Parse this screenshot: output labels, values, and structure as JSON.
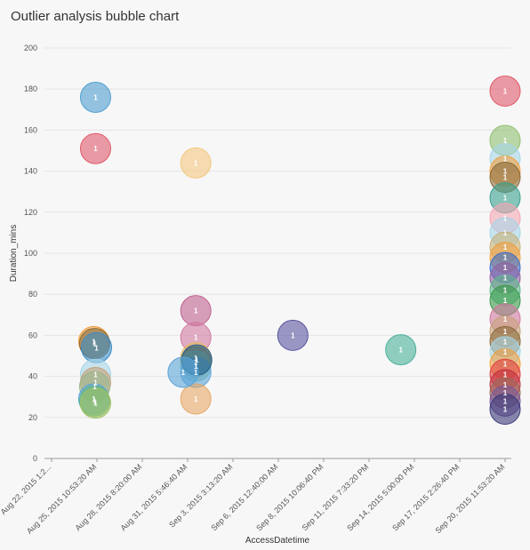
{
  "chart_data": {
    "type": "scatter",
    "title": "Outlier analysis bubble chart",
    "xlabel": "AccessDatetime",
    "ylabel": "Duration_mins",
    "ylim": [
      0,
      200
    ],
    "yticks": [
      0,
      20,
      40,
      60,
      80,
      100,
      120,
      140,
      160,
      180,
      200
    ],
    "xticks": [
      "Aug 22, 2015 1:2...",
      "Aug 25, 2015 10:53:20 AM",
      "Aug 28, 2015 8:20:00 AM",
      "Aug 31, 2015 5:46:40 AM",
      "Sep 3, 2015 3:13:20 AM",
      "Sep 6, 2015 12:40:00 AM",
      "Sep 8, 2015 10:06:40 PM",
      "Sep 11, 2015 7:33:20 PM",
      "Sep 14, 2015 5:00:00 PM",
      "Sep 17, 2015 2:26:40 PM",
      "Sep 20, 2015 11:53:20 AM"
    ],
    "xlim_ticks": [
      0,
      10
    ],
    "bubble_label": "1",
    "points": [
      {
        "x": 0.97,
        "y": 176,
        "color": "#4e9fd1"
      },
      {
        "x": 0.97,
        "y": 151,
        "color": "#e05a6b"
      },
      {
        "x": 0.93,
        "y": 57,
        "color": "#f0a040"
      },
      {
        "x": 0.95,
        "y": 56,
        "color": "#8a6a3a"
      },
      {
        "x": 0.99,
        "y": 54,
        "color": "#3a8dc8"
      },
      {
        "x": 0.97,
        "y": 41,
        "color": "#a6d5e8"
      },
      {
        "x": 0.97,
        "y": 37,
        "color": "#c7a27a"
      },
      {
        "x": 0.95,
        "y": 35,
        "color": "#9ab58a"
      },
      {
        "x": 0.93,
        "y": 29,
        "color": "#5aa5d8"
      },
      {
        "x": 0.95,
        "y": 28,
        "color": "#5fb88a"
      },
      {
        "x": 0.97,
        "y": 27,
        "color": "#a0c060"
      },
      {
        "x": 3.18,
        "y": 144,
        "color": "#f5c880"
      },
      {
        "x": 3.18,
        "y": 72,
        "color": "#c06090"
      },
      {
        "x": 3.18,
        "y": 59,
        "color": "#d07aa0"
      },
      {
        "x": 3.18,
        "y": 49,
        "color": "#e8b860"
      },
      {
        "x": 3.18,
        "y": 47,
        "color": "#a5884a"
      },
      {
        "x": 3.18,
        "y": 45,
        "color": "#8cc0a0"
      },
      {
        "x": 3.18,
        "y": 42,
        "color": "#5aa5d8"
      },
      {
        "x": 3.2,
        "y": 48,
        "color": "#1f5f8a"
      },
      {
        "x": 3.18,
        "y": 29,
        "color": "#e8a868"
      },
      {
        "x": 2.9,
        "y": 42,
        "color": "#5aa5d8"
      },
      {
        "x": 5.32,
        "y": 60,
        "color": "#5a55a0"
      },
      {
        "x": 7.7,
        "y": 53,
        "color": "#4ab09a"
      },
      {
        "x": 10.0,
        "y": 179,
        "color": "#e05a6b"
      },
      {
        "x": 10.0,
        "y": 155,
        "color": "#90c070"
      },
      {
        "x": 10.0,
        "y": 146,
        "color": "#a6d5e8"
      },
      {
        "x": 10.0,
        "y": 140,
        "color": "#f0a040"
      },
      {
        "x": 10.0,
        "y": 137,
        "color": "#8a6a3a"
      },
      {
        "x": 10.0,
        "y": 127,
        "color": "#3aa090"
      },
      {
        "x": 10.0,
        "y": 117,
        "color": "#f4a6b4"
      },
      {
        "x": 10.0,
        "y": 110,
        "color": "#a6d5e8"
      },
      {
        "x": 10.0,
        "y": 103,
        "color": "#c7b27a"
      },
      {
        "x": 10.0,
        "y": 98,
        "color": "#f0a040"
      },
      {
        "x": 10.0,
        "y": 93,
        "color": "#3a6dc8"
      },
      {
        "x": 10.0,
        "y": 88,
        "color": "#9060a0"
      },
      {
        "x": 10.0,
        "y": 82,
        "color": "#5fb88a"
      },
      {
        "x": 10.0,
        "y": 77,
        "color": "#3a9a4a"
      },
      {
        "x": 10.0,
        "y": 68,
        "color": "#d07aa0"
      },
      {
        "x": 10.0,
        "y": 62,
        "color": "#c7a27a"
      },
      {
        "x": 10.0,
        "y": 57,
        "color": "#8a6a3a"
      },
      {
        "x": 10.0,
        "y": 52,
        "color": "#a6d5e8"
      },
      {
        "x": 10.0,
        "y": 46,
        "color": "#f0a040"
      },
      {
        "x": 10.0,
        "y": 41,
        "color": "#e04040"
      },
      {
        "x": 10.0,
        "y": 36,
        "color": "#c03040"
      },
      {
        "x": 10.0,
        "y": 32,
        "color": "#9a6a5a"
      },
      {
        "x": 10.0,
        "y": 28,
        "color": "#7a5a9a"
      },
      {
        "x": 10.0,
        "y": 24,
        "color": "#3a3a7a"
      }
    ]
  }
}
